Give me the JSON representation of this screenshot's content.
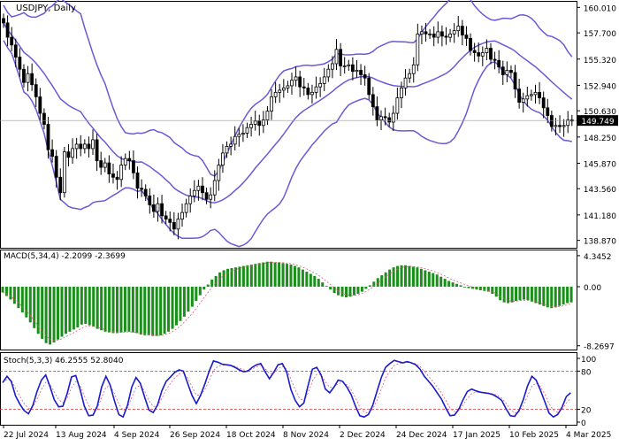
{
  "chart_data": [
    {
      "type": "candlestick",
      "title": "USDJPY, Daily",
      "symbol": "USDJPY",
      "timeframe": "Daily",
      "last_price": "149.749",
      "y_ticks": [
        "160.010",
        "157.700",
        "155.320",
        "152.940",
        "150.630",
        "148.250",
        "145.870",
        "143.560",
        "141.180",
        "138.870"
      ],
      "ylim": [
        138.87,
        160.01
      ],
      "x_ticks": [
        "22 Jul 2024",
        "13 Aug 2024",
        "4 Sep 2024",
        "26 Sep 2024",
        "18 Oct 2024",
        "8 Nov 2024",
        "2 Dec 2024",
        "24 Dec 2024",
        "17 Jan 2025",
        "10 Feb 2025",
        "4 Mar 2025"
      ],
      "close_series": [
        158.6,
        157.3,
        156.6,
        155.5,
        154.4,
        153.2,
        154.0,
        153.0,
        151.9,
        150.4,
        149.4,
        147.1,
        146.5,
        144.6,
        143.2,
        146.9,
        146.4,
        147.2,
        147.6,
        147.2,
        147.6,
        147.2,
        148.0,
        146.1,
        145.5,
        145.9,
        144.9,
        144.6,
        144.4,
        145.7,
        146.3,
        146.1,
        145.0,
        143.6,
        143.5,
        142.9,
        142.1,
        141.5,
        142.2,
        141.1,
        140.8,
        140.5,
        139.9,
        140.8,
        141.4,
        142.2,
        142.9,
        143.4,
        143.8,
        143.2,
        142.6,
        143.0,
        144.3,
        145.7,
        146.8,
        147.4,
        147.6,
        148.3,
        148.5,
        148.6,
        149.1,
        149.4,
        149.7,
        149.3,
        149.8,
        150.6,
        151.9,
        152.3,
        152.5,
        152.7,
        152.9,
        153.4,
        153.7,
        152.8,
        152.7,
        152.1,
        152.3,
        152.8,
        153.1,
        153.7,
        154.4,
        154.9,
        156.2,
        154.7,
        154.7,
        154.8,
        154.2,
        154.3,
        153.9,
        153.6,
        152.1,
        151.0,
        149.8,
        150.1,
        150.0,
        149.6,
        150.4,
        151.8,
        152.7,
        153.6,
        154.0,
        154.8,
        157.6,
        157.8,
        157.6,
        157.6,
        157.3,
        157.8,
        157.4,
        157.3,
        157.6,
        157.9,
        158.3,
        157.5,
        157.2,
        156.1,
        155.9,
        155.6,
        155.9,
        156.3,
        155.3,
        155.2,
        154.6,
        153.9,
        154.3,
        154.1,
        152.6,
        151.4,
        151.7,
        152.0,
        152.1,
        152.3,
        151.8,
        150.9,
        150.2,
        149.2,
        149.3,
        149.2,
        149.3,
        149.8,
        149.7
      ]
    },
    {
      "type": "bar",
      "title": "MACD(5,34,4) -2.2099 -2.3699",
      "y_ticks": [
        "4.3452",
        "0.00",
        "-8.2697"
      ],
      "ylim": [
        -8.27,
        4.35
      ],
      "macd_values": [
        -0.8,
        -1.3,
        -1.8,
        -2.4,
        -3.0,
        -3.6,
        -4.3,
        -5.0,
        -5.8,
        -6.6,
        -7.3,
        -7.9,
        -8.1,
        -7.8,
        -7.4,
        -7.0,
        -6.6,
        -6.3,
        -6.0,
        -5.7,
        -5.3,
        -5.2,
        -5.4,
        -5.6,
        -5.9,
        -6.1,
        -6.3,
        -6.4,
        -6.5,
        -6.5,
        -6.4,
        -6.3,
        -6.3,
        -6.4,
        -6.5,
        -6.7,
        -6.8,
        -6.8,
        -6.9,
        -6.9,
        -6.8,
        -6.6,
        -6.3,
        -5.9,
        -5.4,
        -4.8,
        -4.2,
        -3.5,
        -2.8,
        -2.0,
        -1.2,
        -0.4,
        0.3,
        1.0,
        1.5,
        2.0,
        2.3,
        2.5,
        2.6,
        2.7,
        2.8,
        2.9,
        3.0,
        3.1,
        3.2,
        3.3,
        3.4,
        3.5,
        3.5,
        3.4,
        3.4,
        3.3,
        3.2,
        3.1,
        2.9,
        2.7,
        2.4,
        2.1,
        1.8,
        1.5,
        1.1,
        0.6,
        0.1,
        -0.4,
        -0.9,
        -1.2,
        -1.4,
        -1.5,
        -1.4,
        -1.2,
        -1.0,
        -0.7,
        -0.3,
        0.2,
        0.7,
        1.2,
        1.6,
        2.0,
        2.4,
        2.7,
        2.9,
        3.0,
        3.0,
        2.9,
        2.8,
        2.7,
        2.5,
        2.3,
        2.1,
        1.9,
        1.7,
        1.4,
        1.1,
        0.8,
        0.6,
        0.4,
        0.2,
        0.0,
        -0.2,
        -0.3,
        -0.4,
        -0.5,
        -0.6,
        -0.7,
        -1.0,
        -1.4,
        -1.9,
        -2.2,
        -2.3,
        -2.2,
        -2.0,
        -1.9,
        -1.8,
        -1.9,
        -2.1,
        -2.3,
        -2.5,
        -2.7,
        -2.9,
        -3.0,
        -2.9,
        -2.7,
        -2.5,
        -2.3,
        -2.2
      ],
      "signal_label": "-2.3699",
      "macd_label": "-2.2099"
    },
    {
      "type": "line",
      "title": "Stoch(5,3,3) 46.2555 52.8040",
      "y_ticks": [
        "100",
        "80",
        "20",
        "0"
      ],
      "ylim": [
        0,
        100
      ],
      "k_values": [
        62,
        72,
        64,
        41,
        28,
        18,
        13,
        26,
        48,
        66,
        74,
        56,
        35,
        24,
        25,
        45,
        71,
        73,
        51,
        25,
        10,
        11,
        25,
        55,
        72,
        58,
        33,
        12,
        8,
        26,
        55,
        70,
        61,
        39,
        19,
        15,
        27,
        49,
        64,
        71,
        78,
        82,
        80,
        61,
        42,
        29,
        42,
        60,
        80,
        96,
        94,
        91,
        90,
        89,
        86,
        82,
        79,
        80,
        86,
        90,
        92,
        79,
        68,
        78,
        90,
        92,
        79,
        51,
        34,
        24,
        30,
        58,
        83,
        86,
        74,
        52,
        46,
        55,
        66,
        64,
        55,
        43,
        25,
        10,
        8,
        12,
        26,
        48,
        70,
        86,
        92,
        97,
        95,
        93,
        95,
        93,
        90,
        83,
        72,
        64,
        56,
        46,
        36,
        22,
        10,
        11,
        20,
        35,
        48,
        52,
        49,
        47,
        46,
        45,
        43,
        39,
        34,
        21,
        10,
        9,
        18,
        35,
        57,
        72,
        66,
        50,
        32,
        14,
        8,
        12,
        23,
        40,
        46
      ],
      "d_label": "52.8040",
      "k_label": "46.2555"
    }
  ]
}
